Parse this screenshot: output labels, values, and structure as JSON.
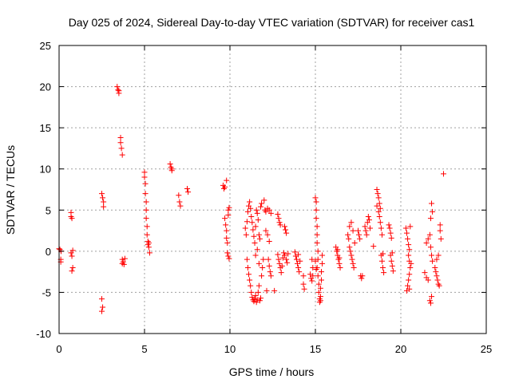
{
  "chart_data": {
    "type": "scatter",
    "title": "Day 025 of 2024, Sidereal Day-to-day VTEC variation (SDTVAR) for receiver cas1",
    "xlabel": "GPS time / hours",
    "ylabel": "SDTVAR / TECUs",
    "xlim": [
      0,
      25
    ],
    "ylim": [
      -10,
      25
    ],
    "xticks": [
      0,
      5,
      10,
      15,
      20,
      25
    ],
    "yticks": [
      -10,
      -5,
      0,
      5,
      10,
      15,
      20,
      25
    ],
    "grid": true,
    "marker": "+",
    "color": "#ff0000",
    "series": [
      {
        "name": "SDTVAR",
        "points": [
          [
            0.0,
            0.3
          ],
          [
            0.05,
            0.2
          ],
          [
            0.1,
            -1.0
          ],
          [
            0.1,
            -1.3
          ],
          [
            0.12,
            0.0
          ],
          [
            0.7,
            4.7
          ],
          [
            0.7,
            4.2
          ],
          [
            0.75,
            4.0
          ],
          [
            0.7,
            -0.2
          ],
          [
            0.75,
            -0.6
          ],
          [
            0.8,
            -2.0
          ],
          [
            0.75,
            -2.4
          ],
          [
            0.8,
            0.1
          ],
          [
            2.5,
            7.0
          ],
          [
            2.55,
            6.5
          ],
          [
            2.6,
            6.0
          ],
          [
            2.6,
            5.4
          ],
          [
            2.5,
            -5.8
          ],
          [
            2.55,
            -6.8
          ],
          [
            2.5,
            -7.3
          ],
          [
            3.4,
            20.0
          ],
          [
            3.45,
            19.6
          ],
          [
            3.5,
            19.2
          ],
          [
            3.5,
            19.5
          ],
          [
            3.6,
            13.8
          ],
          [
            3.6,
            13.2
          ],
          [
            3.65,
            12.5
          ],
          [
            3.7,
            11.7
          ],
          [
            3.7,
            -1.0
          ],
          [
            3.75,
            -1.3
          ],
          [
            3.8,
            -1.6
          ],
          [
            3.85,
            -0.9
          ],
          [
            3.7,
            -1.5
          ],
          [
            5.0,
            9.6
          ],
          [
            5.0,
            9.0
          ],
          [
            5.05,
            8.2
          ],
          [
            5.05,
            7.0
          ],
          [
            5.1,
            6.0
          ],
          [
            5.1,
            5.0
          ],
          [
            5.1,
            4.0
          ],
          [
            5.15,
            3.0
          ],
          [
            5.15,
            2.0
          ],
          [
            5.2,
            1.2
          ],
          [
            5.2,
            0.8
          ],
          [
            5.25,
            0.5
          ],
          [
            5.3,
            -0.2
          ],
          [
            5.25,
            1.0
          ],
          [
            6.5,
            10.6
          ],
          [
            6.55,
            10.2
          ],
          [
            6.6,
            9.8
          ],
          [
            6.6,
            10.0
          ],
          [
            7.0,
            6.8
          ],
          [
            7.05,
            6.0
          ],
          [
            7.1,
            5.5
          ],
          [
            7.5,
            7.6
          ],
          [
            7.55,
            7.2
          ],
          [
            9.6,
            8.0
          ],
          [
            9.65,
            7.6
          ],
          [
            9.7,
            7.8
          ],
          [
            9.7,
            4.0
          ],
          [
            9.75,
            3.2
          ],
          [
            9.8,
            2.5
          ],
          [
            9.8,
            1.6
          ],
          [
            9.85,
            1.0
          ],
          [
            9.9,
            5.0
          ],
          [
            9.95,
            5.3
          ],
          [
            9.9,
            4.4
          ],
          [
            9.85,
            -0.2
          ],
          [
            9.9,
            -0.6
          ],
          [
            9.95,
            -0.9
          ],
          [
            9.8,
            8.6
          ],
          [
            10.9,
            2.8
          ],
          [
            10.95,
            2.0
          ],
          [
            11.0,
            3.6
          ],
          [
            11.05,
            4.8
          ],
          [
            11.1,
            5.5
          ],
          [
            11.15,
            6.0
          ],
          [
            11.2,
            5.2
          ],
          [
            11.25,
            4.2
          ],
          [
            11.3,
            3.5
          ],
          [
            11.35,
            2.6
          ],
          [
            11.4,
            1.8
          ],
          [
            11.45,
            1.0
          ],
          [
            11.5,
            3.0
          ],
          [
            11.55,
            5.0
          ],
          [
            11.6,
            4.6
          ],
          [
            11.65,
            3.8
          ],
          [
            11.7,
            2.0
          ],
          [
            11.75,
            1.5
          ],
          [
            11.8,
            5.4
          ],
          [
            11.85,
            5.8
          ],
          [
            11.0,
            -1.0
          ],
          [
            11.05,
            -2.0
          ],
          [
            11.1,
            -2.8
          ],
          [
            11.15,
            -3.5
          ],
          [
            11.2,
            -4.2
          ],
          [
            11.25,
            -5.0
          ],
          [
            11.3,
            -5.6
          ],
          [
            11.35,
            -5.9
          ],
          [
            11.4,
            -6.1
          ],
          [
            11.45,
            -5.8
          ],
          [
            11.5,
            -5.4
          ],
          [
            11.55,
            -6.2
          ],
          [
            11.6,
            -5.9
          ],
          [
            11.65,
            -5.0
          ],
          [
            11.7,
            -4.2
          ],
          [
            11.75,
            -6.0
          ],
          [
            11.8,
            -5.7
          ],
          [
            11.85,
            -3.0
          ],
          [
            11.9,
            -2.0
          ],
          [
            11.95,
            -1.0
          ],
          [
            11.6,
            0.2
          ],
          [
            11.5,
            -0.5
          ],
          [
            11.7,
            -1.5
          ],
          [
            12.0,
            6.2
          ],
          [
            12.05,
            5.0
          ],
          [
            12.1,
            4.8
          ],
          [
            12.2,
            5.2
          ],
          [
            12.3,
            5.0
          ],
          [
            12.4,
            4.6
          ],
          [
            12.1,
            2.5
          ],
          [
            12.2,
            2.0
          ],
          [
            12.3,
            1.2
          ],
          [
            12.25,
            -1.0
          ],
          [
            12.3,
            -1.8
          ],
          [
            12.35,
            -2.5
          ],
          [
            12.4,
            -3.0
          ],
          [
            12.15,
            -4.8
          ],
          [
            12.6,
            -4.8
          ],
          [
            12.8,
            4.5
          ],
          [
            12.85,
            4.0
          ],
          [
            12.9,
            3.5
          ],
          [
            12.95,
            3.2
          ],
          [
            12.8,
            -0.4
          ],
          [
            12.85,
            -1.0
          ],
          [
            12.9,
            -1.5
          ],
          [
            12.95,
            -2.0
          ],
          [
            13.0,
            -2.6
          ],
          [
            13.05,
            -1.8
          ],
          [
            13.1,
            -0.8
          ],
          [
            13.15,
            -0.2
          ],
          [
            13.2,
            3.0
          ],
          [
            13.25,
            2.6
          ],
          [
            13.3,
            2.2
          ],
          [
            13.2,
            -0.5
          ],
          [
            13.3,
            -1.0
          ],
          [
            13.35,
            -1.4
          ],
          [
            13.4,
            -0.3
          ],
          [
            13.8,
            -0.1
          ],
          [
            13.85,
            -0.6
          ],
          [
            13.9,
            -1.0
          ],
          [
            13.95,
            -1.5
          ],
          [
            14.0,
            -2.0
          ],
          [
            14.05,
            -2.5
          ],
          [
            14.1,
            -1.2
          ],
          [
            14.0,
            -0.4
          ],
          [
            14.3,
            -4.0
          ],
          [
            14.35,
            -4.6
          ],
          [
            14.3,
            -3.0
          ],
          [
            14.7,
            -2.8
          ],
          [
            14.75,
            -3.3
          ],
          [
            14.8,
            -3.6
          ],
          [
            14.85,
            -3.0
          ],
          [
            14.8,
            -1.0
          ],
          [
            14.85,
            -2.0
          ],
          [
            15.0,
            6.5
          ],
          [
            15.05,
            6.0
          ],
          [
            15.05,
            5.0
          ],
          [
            15.05,
            4.0
          ],
          [
            15.1,
            3.0
          ],
          [
            15.1,
            2.0
          ],
          [
            15.1,
            1.0
          ],
          [
            15.15,
            0.0
          ],
          [
            15.15,
            -1.0
          ],
          [
            15.1,
            -2.0
          ],
          [
            15.15,
            -3.0
          ],
          [
            15.2,
            -4.0
          ],
          [
            15.2,
            -5.0
          ],
          [
            15.25,
            -5.8
          ],
          [
            15.25,
            -6.2
          ],
          [
            15.3,
            -5.5
          ],
          [
            15.3,
            -6.0
          ],
          [
            15.3,
            -4.5
          ],
          [
            15.35,
            -3.5
          ],
          [
            15.35,
            -2.5
          ],
          [
            15.4,
            -1.5
          ],
          [
            15.4,
            -0.5
          ],
          [
            15.0,
            -1.2
          ],
          [
            15.05,
            -2.2
          ],
          [
            16.2,
            0.5
          ],
          [
            16.25,
            0.0
          ],
          [
            16.3,
            -0.5
          ],
          [
            16.35,
            -1.0
          ],
          [
            16.4,
            -1.5
          ],
          [
            16.45,
            -2.0
          ],
          [
            16.3,
            0.2
          ],
          [
            16.4,
            -0.8
          ],
          [
            16.9,
            2.0
          ],
          [
            16.95,
            1.5
          ],
          [
            17.0,
            0.5
          ],
          [
            17.05,
            0.0
          ],
          [
            17.1,
            -0.5
          ],
          [
            17.15,
            -1.0
          ],
          [
            17.2,
            -1.5
          ],
          [
            17.25,
            -2.0
          ],
          [
            17.0,
            3.0
          ],
          [
            17.1,
            3.5
          ],
          [
            17.2,
            2.5
          ],
          [
            17.3,
            1.0
          ],
          [
            17.5,
            2.5
          ],
          [
            17.55,
            2.0
          ],
          [
            17.6,
            1.5
          ],
          [
            17.65,
            -3.0
          ],
          [
            17.7,
            -3.3
          ],
          [
            17.75,
            -3.0
          ],
          [
            17.9,
            3.0
          ],
          [
            17.95,
            2.5
          ],
          [
            18.0,
            2.0
          ],
          [
            18.05,
            3.5
          ],
          [
            18.1,
            4.2
          ],
          [
            18.15,
            3.8
          ],
          [
            18.2,
            2.8
          ],
          [
            18.4,
            0.6
          ],
          [
            18.6,
            7.5
          ],
          [
            18.65,
            7.0
          ],
          [
            18.7,
            6.5
          ],
          [
            18.75,
            5.8
          ],
          [
            18.8,
            5.2
          ],
          [
            18.6,
            5.5
          ],
          [
            18.7,
            4.8
          ],
          [
            18.75,
            4.2
          ],
          [
            18.8,
            3.5
          ],
          [
            18.85,
            2.8
          ],
          [
            18.9,
            2.0
          ],
          [
            18.85,
            -0.5
          ],
          [
            18.9,
            -1.2
          ],
          [
            18.95,
            -2.0
          ],
          [
            19.0,
            -2.6
          ],
          [
            18.95,
            -0.3
          ],
          [
            19.3,
            3.2
          ],
          [
            19.35,
            2.8
          ],
          [
            19.4,
            2.2
          ],
          [
            19.45,
            1.6
          ],
          [
            19.4,
            -0.5
          ],
          [
            19.45,
            -1.2
          ],
          [
            19.5,
            -1.8
          ],
          [
            19.55,
            -2.4
          ],
          [
            19.5,
            -0.2
          ],
          [
            20.3,
            2.8
          ],
          [
            20.35,
            2.2
          ],
          [
            20.4,
            1.5
          ],
          [
            20.45,
            0.8
          ],
          [
            20.5,
            0.2
          ],
          [
            20.45,
            -0.5
          ],
          [
            20.5,
            -1.2
          ],
          [
            20.55,
            -2.0
          ],
          [
            20.5,
            -2.8
          ],
          [
            20.45,
            -3.5
          ],
          [
            20.4,
            -4.2
          ],
          [
            20.35,
            -4.8
          ],
          [
            20.5,
            -4.6
          ],
          [
            20.6,
            -1.5
          ],
          [
            20.55,
            3.0
          ],
          [
            21.4,
            -2.6
          ],
          [
            21.5,
            -3.2
          ],
          [
            21.6,
            -3.5
          ],
          [
            21.5,
            1.0
          ],
          [
            21.6,
            1.5
          ],
          [
            21.7,
            2.0
          ],
          [
            21.75,
            0.5
          ],
          [
            21.8,
            -0.5
          ],
          [
            21.85,
            -1.2
          ],
          [
            21.7,
            -6.0
          ],
          [
            21.75,
            -6.3
          ],
          [
            21.8,
            -5.5
          ],
          [
            21.8,
            5.8
          ],
          [
            21.85,
            4.8
          ],
          [
            21.75,
            4.0
          ],
          [
            22.0,
            -2.0
          ],
          [
            22.05,
            -2.5
          ],
          [
            22.1,
            -3.0
          ],
          [
            22.15,
            -3.5
          ],
          [
            22.2,
            -4.0
          ],
          [
            22.25,
            -4.2
          ],
          [
            22.1,
            -1.0
          ],
          [
            22.2,
            -0.5
          ],
          [
            22.3,
            2.5
          ],
          [
            22.3,
            3.2
          ],
          [
            22.35,
            1.5
          ],
          [
            22.5,
            9.4
          ]
        ]
      }
    ]
  }
}
